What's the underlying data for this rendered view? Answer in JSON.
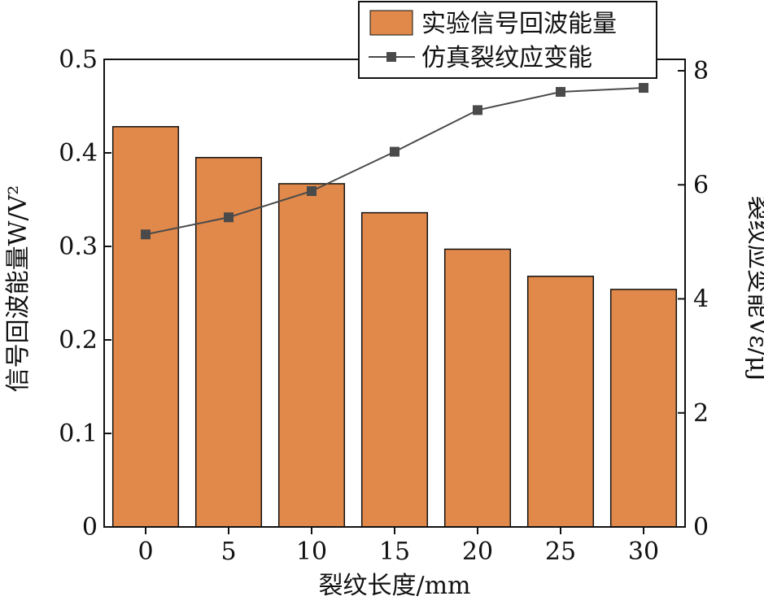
{
  "chart_data": {
    "type": "bar+line",
    "categories": [
      "0",
      "5",
      "10",
      "15",
      "20",
      "25",
      "30"
    ],
    "series": [
      {
        "name": "实验信号回波能量",
        "type": "bar",
        "axis": "left",
        "values": [
          0.428,
          0.395,
          0.367,
          0.336,
          0.297,
          0.268,
          0.254
        ],
        "color": "#E0894B"
      },
      {
        "name": "仿真裂纹应变能",
        "type": "line",
        "axis": "right",
        "values": [
          5.13,
          5.43,
          5.89,
          6.58,
          7.31,
          7.63,
          7.7
        ],
        "color": "#4a4a4a"
      }
    ],
    "xlabel": "裂纹长度/mm",
    "ylabel_left": "信号回波能量W/V²",
    "ylabel_right": "裂纹应变能Vε/μJ",
    "ylim_left": [
      0,
      0.5
    ],
    "ylim_right": [
      0,
      8.2
    ],
    "yticks_left": [
      "0",
      "0.1",
      "0.2",
      "0.3",
      "0.4",
      "0.5"
    ],
    "yticks_right": [
      "0",
      "2",
      "4",
      "6",
      "8"
    ],
    "legend": "top-right",
    "grid": false
  }
}
